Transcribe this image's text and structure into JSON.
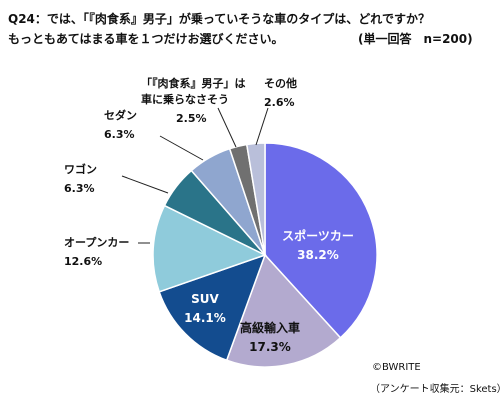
{
  "header": {
    "question_line1": "Q24：では、「『肉食系』男子」が乗っていそうな車のタイプは、どれですか？",
    "question_line2": "もっともあてはまる車を１つだけお選びください。",
    "note": "(単一回答　n=200)"
  },
  "footer": {
    "copyright": "©BWRITE",
    "source": "（アンケート収集元：Skets）"
  },
  "chart_data": {
    "type": "pie",
    "unit": "%",
    "start": "12 o'clock, clockwise",
    "slices": [
      {
        "label": "スポーツカー",
        "value": 38.2,
        "value_text": "38.2%",
        "color": "#6B6BEA",
        "label_placement": "inside",
        "text_color": "#ffffff"
      },
      {
        "label": "高級輸入車",
        "value": 17.3,
        "value_text": "17.3%",
        "color": "#B3AACF",
        "label_placement": "inside",
        "text_color": "#111111"
      },
      {
        "label": "SUV",
        "value": 14.1,
        "value_text": "14.1%",
        "color": "#134C8F",
        "label_placement": "inside",
        "text_color": "#ffffff"
      },
      {
        "label": "オープンカー",
        "value": 12.6,
        "value_text": "12.6%",
        "color": "#8FCBDB",
        "label_placement": "outside",
        "text_color": "#111111"
      },
      {
        "label": "ワゴン",
        "value": 6.3,
        "value_text": "6.3%",
        "color": "#2A7489",
        "label_placement": "outside",
        "text_color": "#111111"
      },
      {
        "label": "セダン",
        "value": 6.3,
        "value_text": "6.3%",
        "color": "#8FA6CF",
        "label_placement": "outside",
        "text_color": "#111111"
      },
      {
        "label": "「『肉食系』男子」は\n車に乗らなさそう",
        "value": 2.5,
        "value_text": "2.5%",
        "color": "#707070",
        "label_placement": "outside",
        "text_color": "#111111"
      },
      {
        "label": "その他",
        "value": 2.6,
        "value_text": "2.6%",
        "color": "#B9BFDA",
        "label_placement": "outside",
        "text_color": "#111111"
      }
    ]
  }
}
